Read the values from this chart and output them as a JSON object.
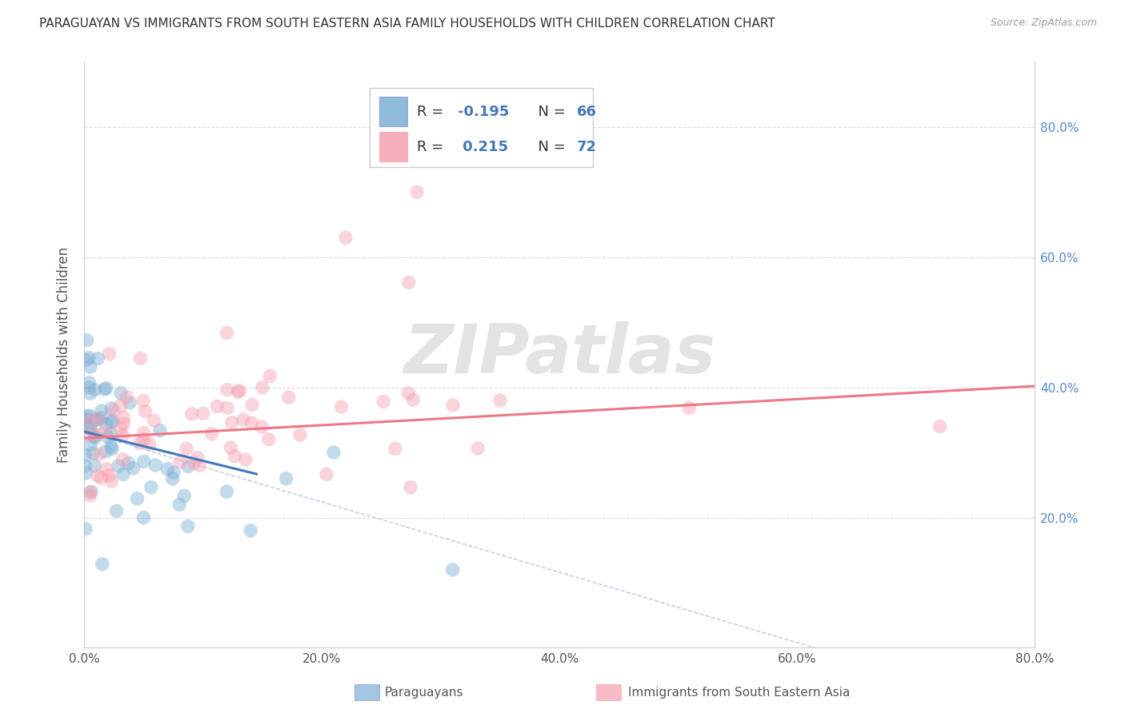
{
  "title": "PARAGUAYAN VS IMMIGRANTS FROM SOUTH EASTERN ASIA FAMILY HOUSEHOLDS WITH CHILDREN CORRELATION CHART",
  "source": "Source: ZipAtlas.com",
  "ylabel": "Family Households with Children",
  "xlim": [
    0.0,
    0.8
  ],
  "ylim": [
    0.0,
    0.9
  ],
  "ytick_labels_right": [
    "20.0%",
    "40.0%",
    "60.0%",
    "80.0%"
  ],
  "ytick_values": [
    0.0,
    0.2,
    0.4,
    0.6,
    0.8
  ],
  "xtick_labels": [
    "0.0%",
    "20.0%",
    "40.0%",
    "60.0%",
    "80.0%"
  ],
  "xtick_values": [
    0.0,
    0.2,
    0.4,
    0.6,
    0.8
  ],
  "blue_color": "#7BAFD4",
  "pink_color": "#F4A0B0",
  "blue_line_color": "#4477BB",
  "pink_line_color": "#EE7788",
  "dashed_line_color": "#AABBDD",
  "R_blue": -0.195,
  "N_blue": 66,
  "R_pink": 0.215,
  "N_pink": 72,
  "legend_label_blue": "Paraguayans",
  "legend_label_pink": "Immigrants from South Eastern Asia",
  "watermark": "ZIPatlas",
  "blue_line_x": [
    0.0,
    0.145
  ],
  "blue_line_y": [
    0.332,
    0.267
  ],
  "pink_line_x": [
    0.0,
    0.8
  ],
  "pink_line_y": [
    0.322,
    0.402
  ],
  "dashed_line_x": [
    0.0,
    0.8
  ],
  "dashed_line_y": [
    0.332,
    -0.1
  ],
  "text_color_rn": "#4477BB",
  "legend_text_color": "#222222"
}
